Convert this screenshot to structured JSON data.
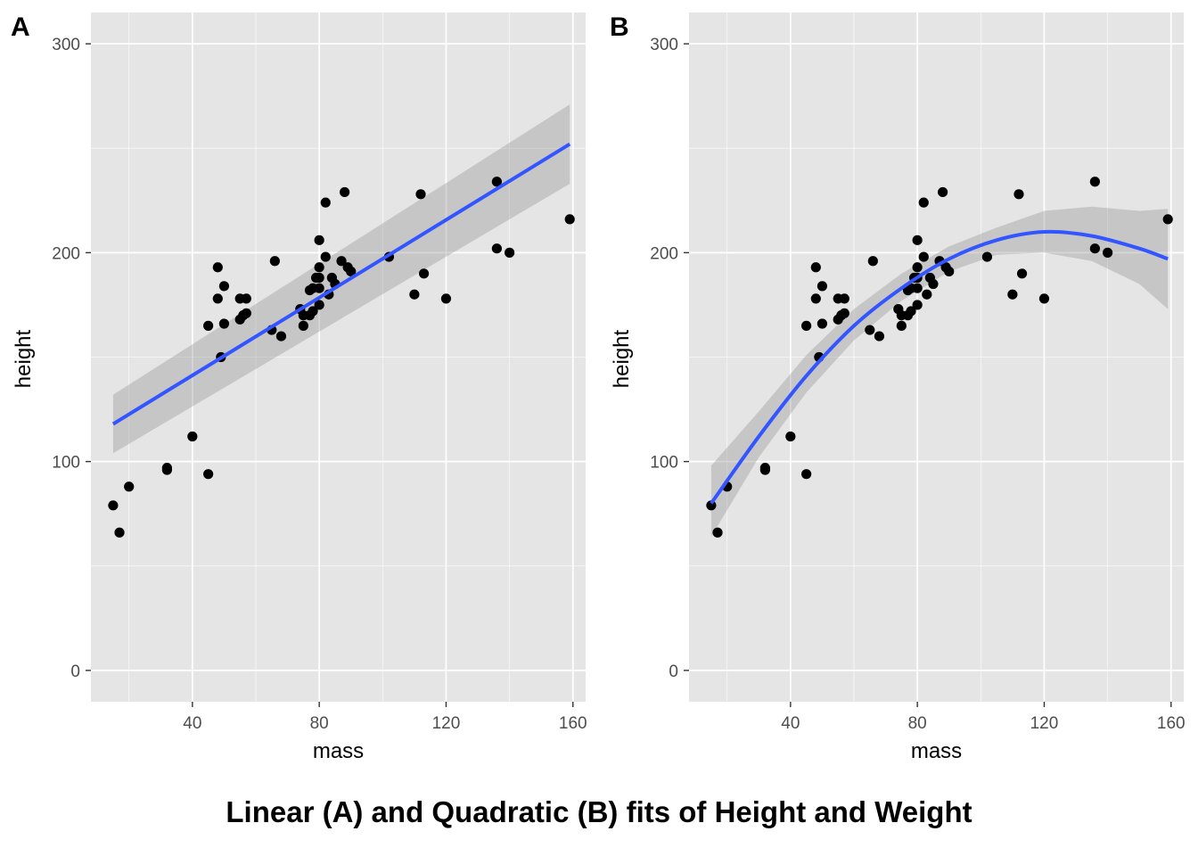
{
  "caption": "Linear (A) and Quadratic (B) fits of Height and Weight",
  "colors": {
    "panel_background": "#e5e5e5",
    "grid": "#ffffff",
    "points": "#000000",
    "fit_line": "#3355ff",
    "confidence_band": "#999999"
  },
  "chart_data": [
    {
      "type": "scatter",
      "panel_label": "A",
      "title": "",
      "xlabel": "mass",
      "ylabel": "height",
      "xlim": [
        8,
        164
      ],
      "ylim": [
        -15,
        315
      ],
      "xticks": [
        40,
        80,
        120,
        160
      ],
      "yticks": [
        0,
        100,
        200,
        300
      ],
      "grid": true,
      "points": {
        "x": [
          15,
          17,
          20,
          32,
          32,
          40,
          45,
          45,
          48,
          48,
          49,
          50,
          50,
          55,
          55,
          56,
          57,
          57,
          65,
          66,
          68,
          74,
          75,
          75,
          77,
          77,
          78,
          78,
          79,
          80,
          80,
          80,
          80,
          80,
          82,
          82,
          83,
          84,
          85,
          87,
          88,
          89,
          90,
          102,
          110,
          112,
          113,
          120,
          136,
          136,
          140,
          159
        ],
        "y": [
          79,
          66,
          88,
          96,
          97,
          112,
          94,
          165,
          193,
          178,
          150,
          184,
          166,
          168,
          178,
          170,
          171,
          178,
          163,
          196,
          160,
          173,
          170,
          165,
          182,
          170,
          172,
          183,
          188,
          206,
          193,
          188,
          183,
          175,
          224,
          198,
          180,
          188,
          185,
          196,
          229,
          193,
          191,
          198,
          180,
          228,
          190,
          178,
          234,
          202,
          200,
          216
        ]
      },
      "fit": {
        "method": "linear",
        "x": [
          15,
          159
        ],
        "y": [
          118,
          252
        ],
        "ci_lower": [
          104,
          233
        ],
        "ci_upper": [
          132,
          271
        ]
      }
    },
    {
      "type": "scatter",
      "panel_label": "B",
      "title": "",
      "xlabel": "mass",
      "ylabel": "height",
      "xlim": [
        8,
        164
      ],
      "ylim": [
        -15,
        315
      ],
      "xticks": [
        40,
        80,
        120,
        160
      ],
      "yticks": [
        0,
        100,
        200,
        300
      ],
      "grid": true,
      "points": {
        "x": [
          15,
          17,
          20,
          32,
          32,
          40,
          45,
          45,
          48,
          48,
          49,
          50,
          50,
          55,
          55,
          56,
          57,
          57,
          65,
          66,
          68,
          74,
          75,
          75,
          77,
          77,
          78,
          78,
          79,
          80,
          80,
          80,
          80,
          80,
          82,
          82,
          83,
          84,
          85,
          87,
          88,
          89,
          90,
          102,
          110,
          112,
          113,
          120,
          136,
          136,
          140,
          159
        ],
        "y": [
          79,
          66,
          88,
          96,
          97,
          112,
          94,
          165,
          193,
          178,
          150,
          184,
          166,
          168,
          178,
          170,
          171,
          178,
          163,
          196,
          160,
          173,
          170,
          165,
          182,
          170,
          172,
          183,
          188,
          206,
          193,
          188,
          183,
          175,
          224,
          198,
          180,
          188,
          185,
          196,
          229,
          193,
          191,
          198,
          180,
          228,
          190,
          178,
          234,
          202,
          200,
          216
        ]
      },
      "fit": {
        "method": "quadratic",
        "x": [
          15,
          30,
          45,
          60,
          75,
          90,
          105,
          120,
          135,
          150,
          159
        ],
        "y": [
          80,
          112,
          141,
          165,
          183,
          197,
          206,
          210,
          208,
          202,
          197
        ],
        "ci_lower": [
          64,
          102,
          133,
          158,
          177,
          191,
          199,
          200,
          196,
          185,
          173
        ],
        "ci_upper": [
          98,
          124,
          151,
          173,
          190,
          203,
          212,
          220,
          222,
          220,
          221
        ]
      }
    }
  ]
}
